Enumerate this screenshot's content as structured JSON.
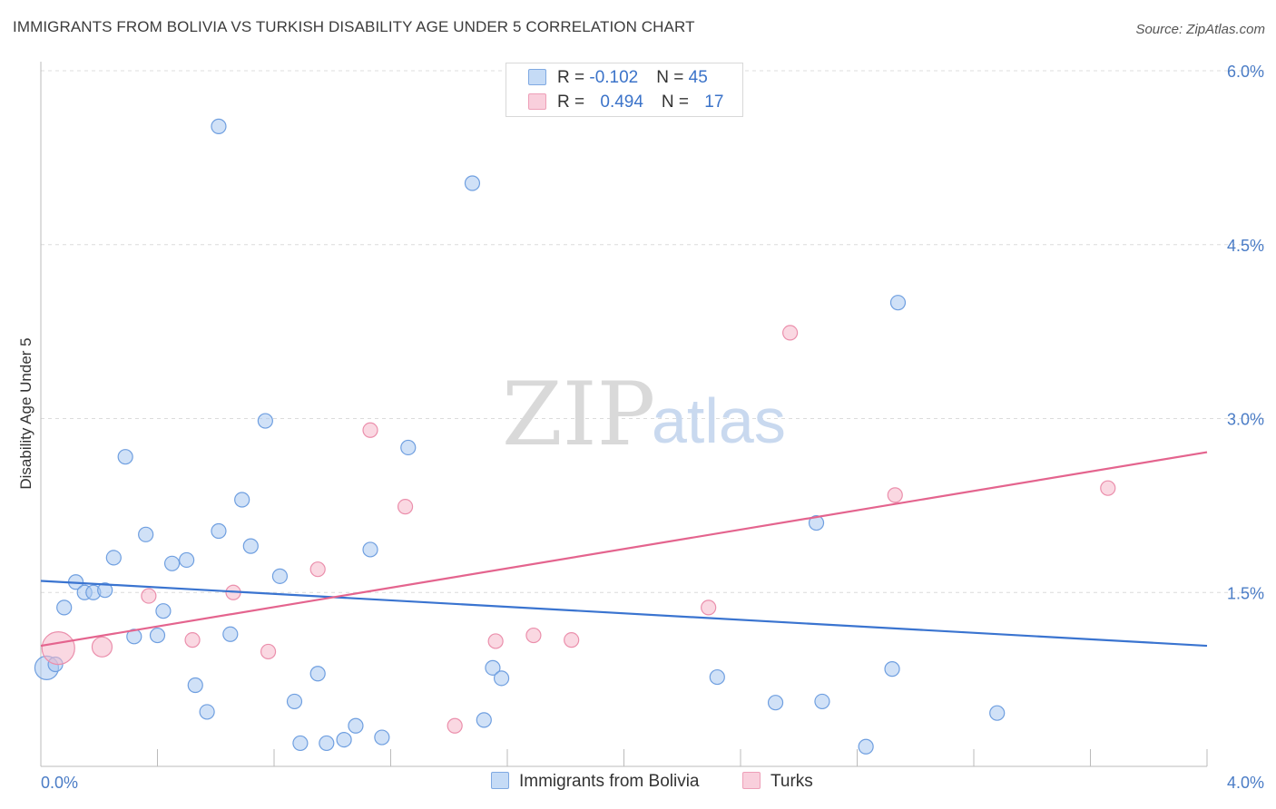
{
  "title": "IMMIGRANTS FROM BOLIVIA VS TURKISH DISABILITY AGE UNDER 5 CORRELATION CHART",
  "source": "Source: ZipAtlas.com",
  "watermark": {
    "zip": "ZIP",
    "atlas": "atlas"
  },
  "legend": {
    "rows": [
      {
        "r_label": "R = ",
        "r_value": "-0.102",
        "n_label": "N = ",
        "n_value": "45",
        "color": "#a9c8f0"
      },
      {
        "r_label": "R = ",
        "r_value": "0.494",
        "n_label": "N = ",
        "n_value": "17",
        "color": "#f6b8cb"
      }
    ]
  },
  "bottom_legend": [
    {
      "label": "Immigrants from Bolivia",
      "color": "#a9c8f0"
    },
    {
      "label": "Turks",
      "color": "#f6b8cb"
    }
  ],
  "colors": {
    "blue_fill": "#a9c8f0",
    "blue_stroke": "#6f9fe0",
    "blue_line": "#3a74d0",
    "pink_fill": "#f6b8cb",
    "pink_stroke": "#eb8fac",
    "pink_line": "#e4648e",
    "tick_text": "#4a7cc6",
    "grid": "#dcdcdc"
  },
  "chart_data": {
    "type": "scatter",
    "title": "IMMIGRANTS FROM BOLIVIA VS TURKISH DISABILITY AGE UNDER 5 CORRELATION CHART",
    "xlabel": "",
    "ylabel": "Disability Age Under 5",
    "xlim": [
      0,
      4.0
    ],
    "ylim": [
      0,
      6.0
    ],
    "x_tick_labels": [
      "0.0%",
      "4.0%"
    ],
    "y_ticks": [
      1.5,
      3.0,
      4.5,
      6.0
    ],
    "y_tick_labels": [
      "1.5%",
      "3.0%",
      "4.5%",
      "6.0%"
    ],
    "grid": true,
    "series": [
      {
        "name": "Immigrants from Bolivia",
        "color": "#a9c8f0",
        "points": [
          [
            0.02,
            0.85
          ],
          [
            0.05,
            0.88
          ],
          [
            0.08,
            1.37
          ],
          [
            0.12,
            1.59
          ],
          [
            0.15,
            1.5
          ],
          [
            0.18,
            1.5
          ],
          [
            0.22,
            1.52
          ],
          [
            0.25,
            1.8
          ],
          [
            0.29,
            2.67
          ],
          [
            0.32,
            1.12
          ],
          [
            0.36,
            2.0
          ],
          [
            0.4,
            1.13
          ],
          [
            0.42,
            1.34
          ],
          [
            0.45,
            1.75
          ],
          [
            0.5,
            1.78
          ],
          [
            0.53,
            0.7
          ],
          [
            0.57,
            0.47
          ],
          [
            0.61,
            2.03
          ],
          [
            0.65,
            1.14
          ],
          [
            0.69,
            2.3
          ],
          [
            0.72,
            1.9
          ],
          [
            0.77,
            2.98
          ],
          [
            0.82,
            1.64
          ],
          [
            0.87,
            0.56
          ],
          [
            0.89,
            0.2
          ],
          [
            0.95,
            0.8
          ],
          [
            0.98,
            0.2
          ],
          [
            1.04,
            0.23
          ],
          [
            1.08,
            0.35
          ],
          [
            1.13,
            1.87
          ],
          [
            1.17,
            0.25
          ],
          [
            1.26,
            2.75
          ],
          [
            1.48,
            5.03
          ],
          [
            1.52,
            0.4
          ],
          [
            1.55,
            0.85
          ],
          [
            1.58,
            0.76
          ],
          [
            0.61,
            5.52
          ],
          [
            2.32,
            0.77
          ],
          [
            2.52,
            0.55
          ],
          [
            2.66,
            2.1
          ],
          [
            2.68,
            0.56
          ],
          [
            2.83,
            0.17
          ],
          [
            2.92,
            0.84
          ],
          [
            2.94,
            4.0
          ],
          [
            3.28,
            0.46
          ]
        ]
      },
      {
        "name": "Turks",
        "color": "#f6b8cb",
        "points": [
          [
            0.06,
            1.02
          ],
          [
            0.21,
            1.03
          ],
          [
            0.37,
            1.47
          ],
          [
            0.52,
            1.09
          ],
          [
            0.66,
            1.5
          ],
          [
            0.78,
            0.99
          ],
          [
            0.95,
            1.7
          ],
          [
            1.13,
            2.9
          ],
          [
            1.25,
            2.24
          ],
          [
            1.42,
            0.35
          ],
          [
            1.56,
            1.08
          ],
          [
            1.69,
            1.13
          ],
          [
            1.82,
            1.09
          ],
          [
            2.29,
            1.37
          ],
          [
            2.57,
            3.74
          ],
          [
            2.93,
            2.34
          ],
          [
            3.66,
            2.4
          ]
        ]
      }
    ],
    "trend_lines": [
      {
        "series": "Immigrants from Bolivia",
        "x": [
          0.0,
          4.0
        ],
        "y": [
          1.6,
          1.04
        ]
      },
      {
        "series": "Turks",
        "x": [
          0.0,
          4.0
        ],
        "y": [
          1.04,
          2.71
        ]
      }
    ],
    "legend": [
      {
        "series": "Immigrants from Bolivia",
        "R": -0.102,
        "N": 45
      },
      {
        "series": "Turks",
        "R": 0.494,
        "N": 17
      }
    ]
  }
}
